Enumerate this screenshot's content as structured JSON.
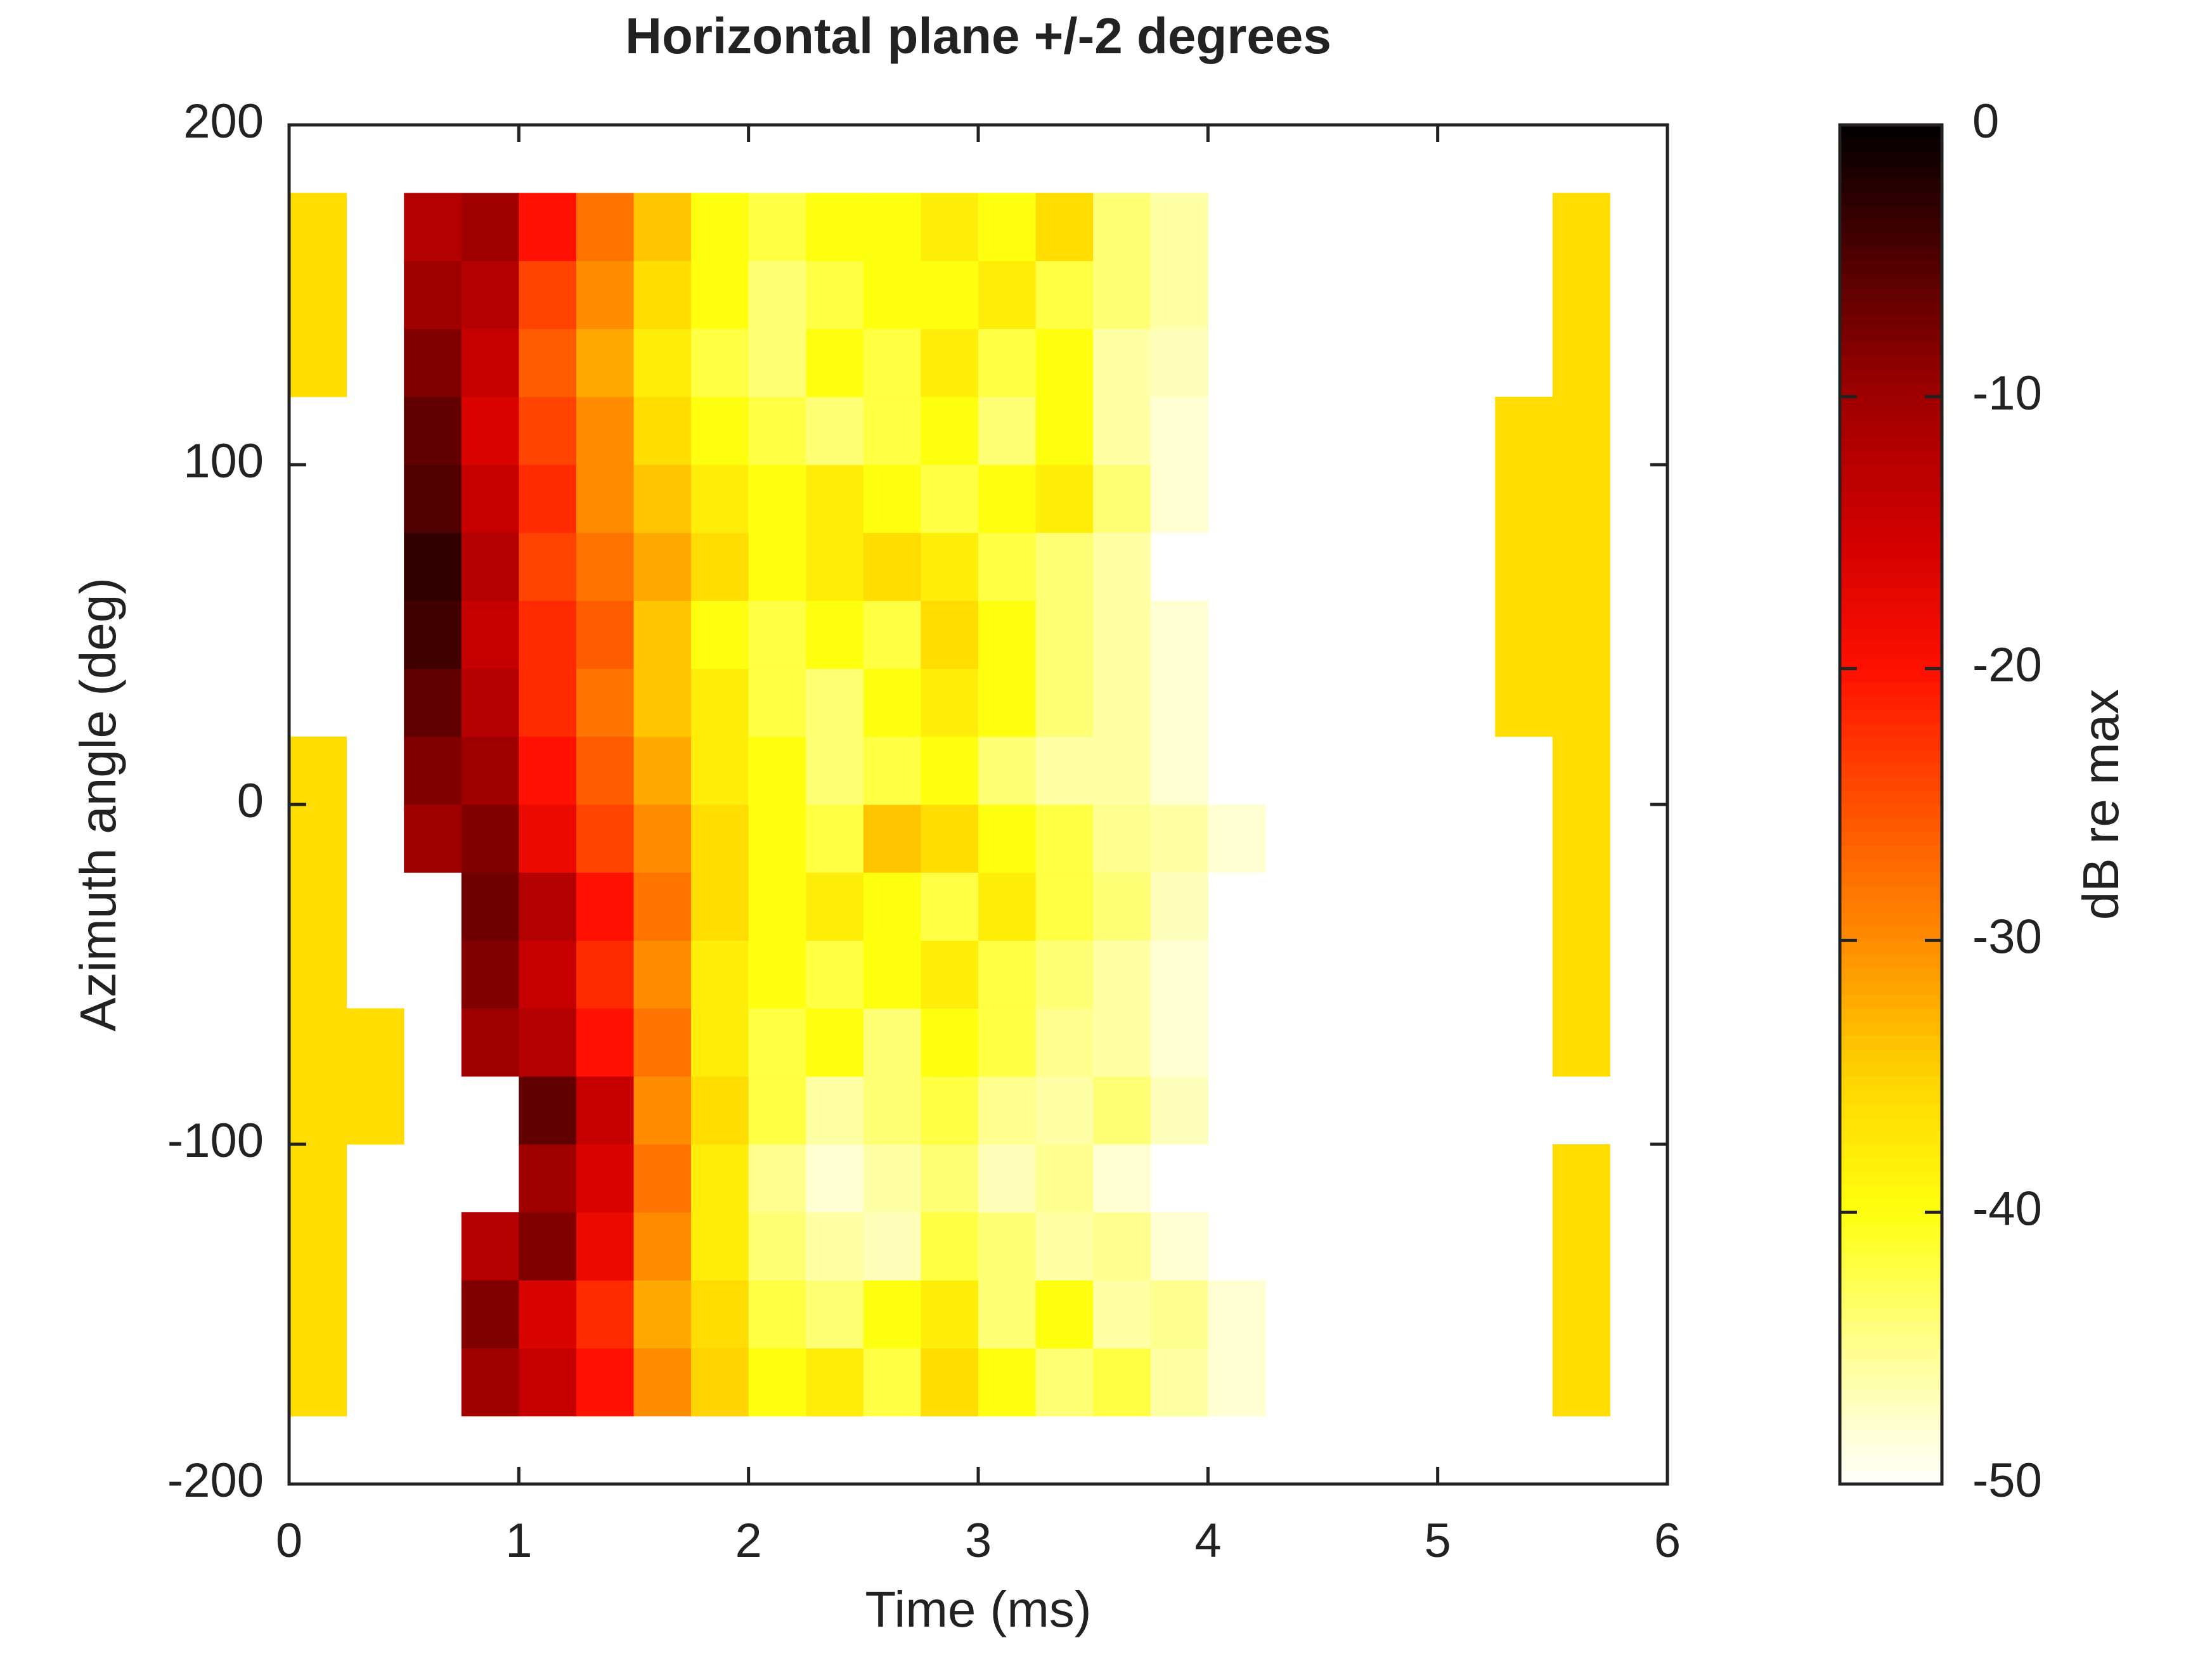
{
  "chart_data": {
    "type": "heatmap",
    "title": "Horizontal plane +/-2 degrees",
    "xlabel": "Time (ms)",
    "ylabel": "Azimuth angle (deg)",
    "colorbar_label": "dB re max",
    "xlim": [
      0,
      6
    ],
    "xticks": [
      0,
      1,
      2,
      3,
      4,
      5,
      6
    ],
    "ylim": [
      -200,
      200
    ],
    "yticks": [
      -200,
      -100,
      0,
      100,
      200
    ],
    "clim": [
      -50,
      0
    ],
    "cticks": [
      -50,
      -40,
      -30,
      -20,
      -10,
      0
    ],
    "colormap": [
      "#ffffff",
      "#ffff90",
      "#ffff10",
      "#ffd400",
      "#ff8c00",
      "#ff5000",
      "#ff1000",
      "#d00000",
      "#a00000",
      "#500000",
      "#000000"
    ],
    "x": [
      0.125,
      0.375,
      0.625,
      0.875,
      1.125,
      1.375,
      1.625,
      1.875,
      2.125,
      2.375,
      2.625,
      2.875,
      3.125,
      3.375,
      3.625,
      3.875,
      4.125,
      4.375,
      4.625,
      4.875,
      5.125,
      5.375,
      5.625,
      5.875
    ],
    "y": [
      -170,
      -150,
      -130,
      -110,
      -90,
      -70,
      -50,
      -30,
      -10,
      10,
      30,
      50,
      70,
      90,
      110,
      130,
      150,
      170
    ],
    "z": [
      [
        -36,
        null,
        null,
        -10,
        -14,
        -20,
        -30,
        -35,
        -40,
        -38,
        -42,
        -36,
        -40,
        -44,
        -42,
        -46,
        -48,
        null,
        null,
        null,
        null,
        null,
        -36,
        null
      ],
      [
        -36,
        null,
        null,
        -8,
        -16,
        -22,
        -32,
        -36,
        -42,
        -44,
        -40,
        -38,
        -44,
        -40,
        -46,
        -45,
        -48,
        null,
        null,
        null,
        null,
        null,
        -36,
        null
      ],
      [
        -36,
        null,
        null,
        -12,
        -8,
        -18,
        -30,
        -38,
        -44,
        -46,
        -47,
        -42,
        -44,
        -46,
        -45,
        -48,
        null,
        null,
        null,
        null,
        null,
        null,
        -36,
        null
      ],
      [
        -36,
        null,
        null,
        null,
        -10,
        -16,
        -28,
        -38,
        -45,
        -48,
        -46,
        -44,
        -47,
        -45,
        -48,
        null,
        null,
        null,
        null,
        null,
        null,
        null,
        -36,
        null
      ],
      [
        -36,
        -36,
        null,
        null,
        -6,
        -14,
        -30,
        -36,
        -42,
        -46,
        -44,
        -42,
        -45,
        -46,
        -44,
        -47,
        null,
        null,
        null,
        null,
        null,
        null,
        null,
        null
      ],
      [
        -36,
        -36,
        null,
        -10,
        -12,
        -20,
        -28,
        -38,
        -42,
        -40,
        -44,
        -40,
        -42,
        -45,
        -46,
        -48,
        null,
        null,
        null,
        null,
        null,
        null,
        -36,
        null
      ],
      [
        -36,
        null,
        null,
        -8,
        -14,
        -22,
        -30,
        -38,
        -40,
        -42,
        -40,
        -38,
        -42,
        -44,
        -46,
        -48,
        null,
        null,
        null,
        null,
        null,
        null,
        -36,
        null
      ],
      [
        -36,
        null,
        null,
        -7,
        -12,
        -20,
        -28,
        -36,
        -40,
        -38,
        -40,
        -42,
        -38,
        -42,
        -44,
        -47,
        null,
        null,
        null,
        null,
        null,
        null,
        -36,
        null
      ],
      [
        -36,
        null,
        -10,
        -8,
        -18,
        -24,
        -30,
        -36,
        -40,
        -42,
        -34,
        -36,
        -40,
        -42,
        -45,
        -46,
        -48,
        null,
        null,
        null,
        null,
        null,
        -36,
        null
      ],
      [
        -36,
        null,
        -8,
        -10,
        -20,
        -26,
        -32,
        -38,
        -40,
        -44,
        -42,
        -40,
        -44,
        -46,
        -46,
        -48,
        null,
        null,
        null,
        null,
        null,
        null,
        -36,
        null
      ],
      [
        null,
        null,
        -6,
        -12,
        -22,
        -28,
        -34,
        -38,
        -42,
        -44,
        -40,
        -38,
        -40,
        -44,
        -46,
        -48,
        null,
        null,
        null,
        null,
        null,
        -36,
        -36,
        null
      ],
      [
        null,
        null,
        -4,
        -14,
        -22,
        -26,
        -34,
        -40,
        -42,
        -40,
        -42,
        -36,
        -40,
        -44,
        -46,
        -48,
        null,
        null,
        null,
        null,
        null,
        -36,
        -36,
        null
      ],
      [
        null,
        null,
        -3,
        -12,
        -24,
        -28,
        -32,
        -36,
        -40,
        -38,
        -36,
        -38,
        -42,
        -44,
        -46,
        null,
        null,
        null,
        null,
        null,
        null,
        -36,
        -36,
        null
      ],
      [
        null,
        null,
        -5,
        -14,
        -22,
        -30,
        -34,
        -38,
        -40,
        -38,
        -40,
        -42,
        -40,
        -38,
        -44,
        -48,
        null,
        null,
        null,
        null,
        null,
        -36,
        -36,
        null
      ],
      [
        null,
        null,
        -6,
        -16,
        -24,
        -30,
        -36,
        -40,
        -42,
        -44,
        -42,
        -40,
        -44,
        -40,
        -46,
        -48,
        null,
        null,
        null,
        null,
        null,
        -36,
        -36,
        null
      ],
      [
        -36,
        null,
        -8,
        -14,
        -26,
        -32,
        -38,
        -42,
        -44,
        -40,
        -42,
        -38,
        -42,
        -40,
        -46,
        -47,
        null,
        null,
        null,
        null,
        null,
        null,
        -36,
        null
      ],
      [
        -36,
        null,
        -10,
        -12,
        -24,
        -30,
        -36,
        -40,
        -44,
        -42,
        -40,
        -40,
        -38,
        -42,
        -44,
        -46,
        null,
        null,
        null,
        null,
        null,
        null,
        -36,
        null
      ],
      [
        -36,
        null,
        -12,
        -10,
        -20,
        -28,
        -34,
        -40,
        -42,
        -40,
        -40,
        -38,
        -40,
        -36,
        -44,
        -46,
        null,
        null,
        null,
        null,
        null,
        null,
        -36,
        null
      ]
    ]
  }
}
